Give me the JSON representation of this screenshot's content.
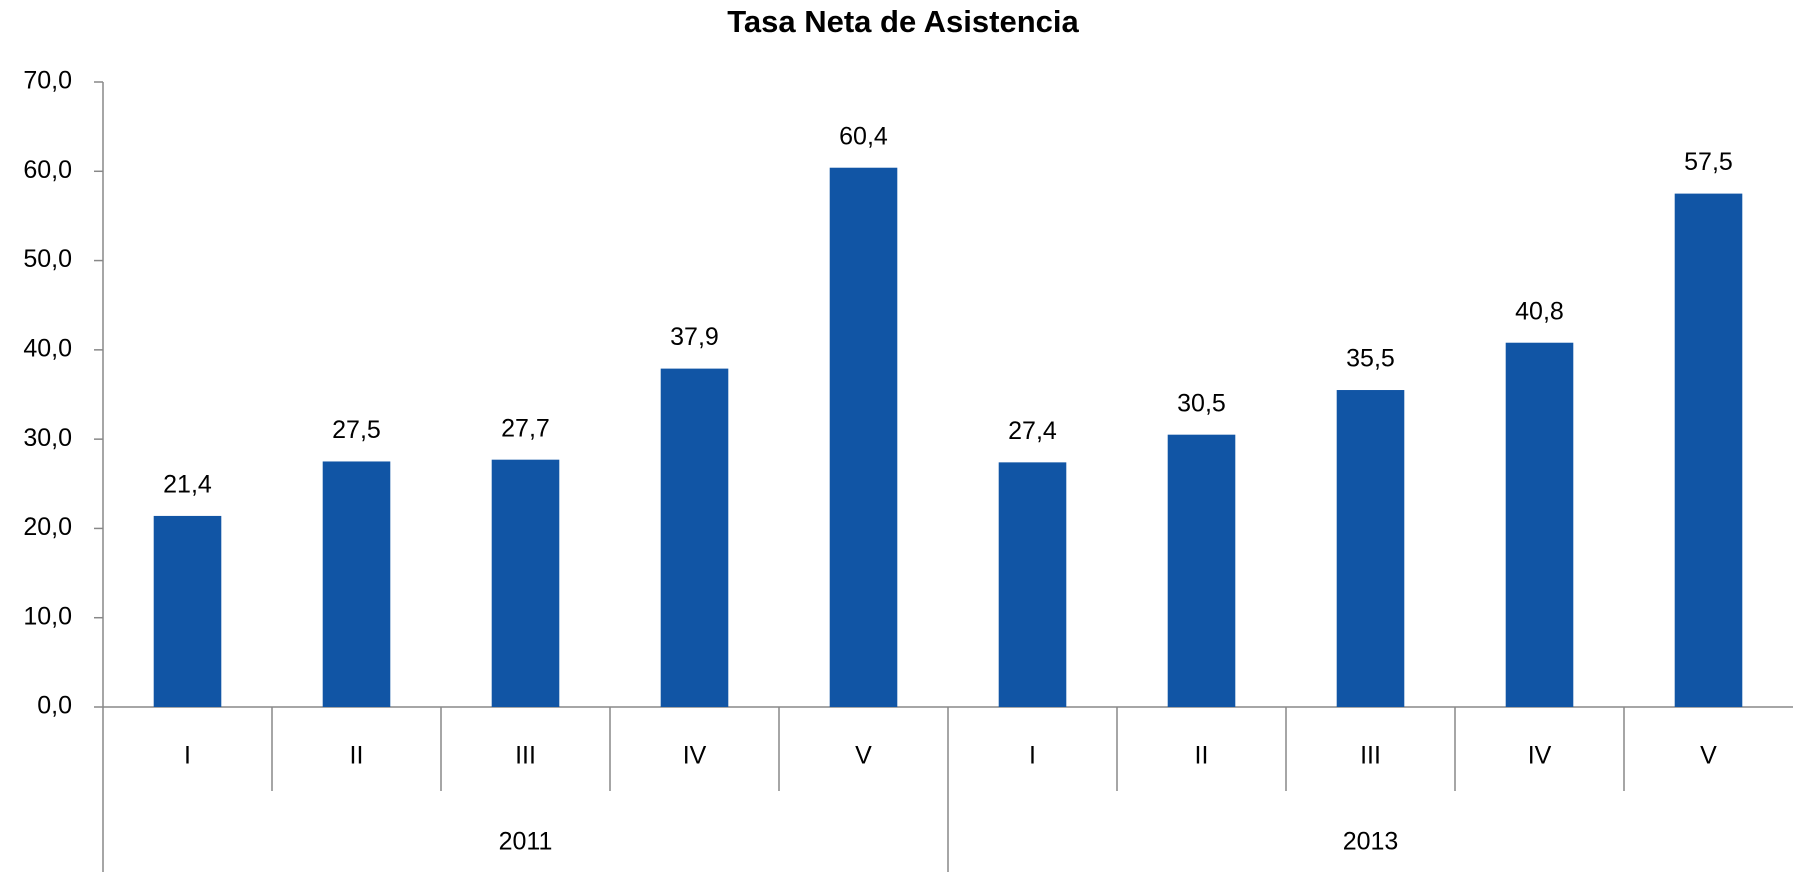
{
  "chart_data": {
    "type": "bar",
    "title": "Tasa Neta de Asistencia",
    "groups": [
      {
        "name": "2011",
        "categories": [
          "I",
          "II",
          "III",
          "IV",
          "V"
        ]
      },
      {
        "name": "2013",
        "categories": [
          "I",
          "II",
          "III",
          "IV",
          "V"
        ]
      }
    ],
    "values": [
      21.4,
      27.5,
      27.7,
      37.9,
      60.4,
      27.4,
      30.5,
      35.5,
      40.8,
      57.5
    ],
    "value_labels": [
      "21,4",
      "27,5",
      "27,7",
      "37,9",
      "60,4",
      "27,4",
      "30,5",
      "35,5",
      "40,8",
      "57,5"
    ],
    "color": "#1155a5",
    "ylim": [
      0,
      70
    ],
    "yticks": [
      {
        "value": 0,
        "label": "0,0"
      },
      {
        "value": 10,
        "label": "10,0"
      },
      {
        "value": 20,
        "label": "20,0"
      },
      {
        "value": 30,
        "label": "30,0"
      },
      {
        "value": 40,
        "label": "40,0"
      },
      {
        "value": 50,
        "label": "50,0"
      },
      {
        "value": 60,
        "label": "60,0"
      },
      {
        "value": 70,
        "label": "70,0"
      }
    ],
    "grid": false
  }
}
